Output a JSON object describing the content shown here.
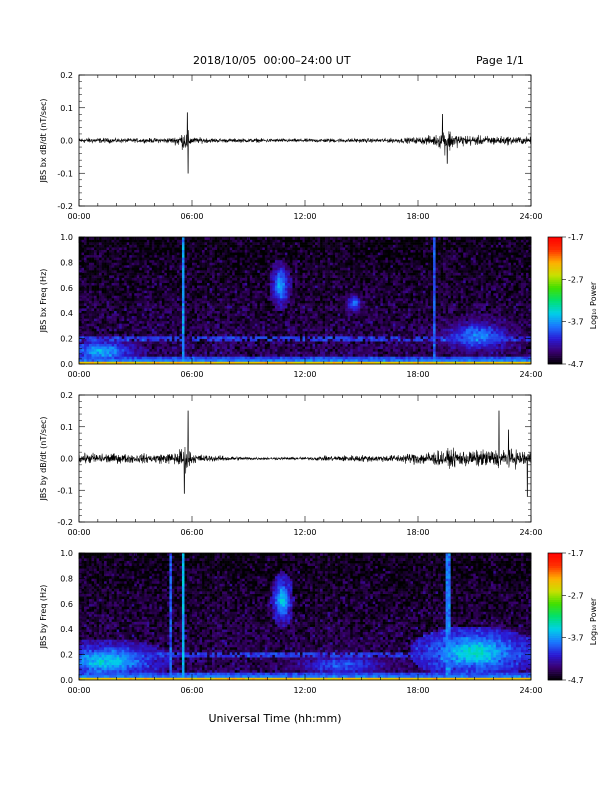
{
  "header": {
    "title": "2018/10/05  00:00–24:00 UT",
    "page": "Page 1/1"
  },
  "xaxis": {
    "label": "Universal Time (hh:mm)",
    "ticks": [
      "00:00",
      "06:00",
      "12:00",
      "18:00",
      "24:00"
    ],
    "range_hours": [
      0,
      24
    ]
  },
  "colorbar": {
    "label": "Log₁₀ Power",
    "ticks": [
      "-1.7",
      "-2.7",
      "-3.7",
      "-4.7"
    ],
    "range": [
      -4.7,
      -1.7
    ],
    "colors": [
      "#000000",
      "#3a0070",
      "#2a1ad6",
      "#1a78ff",
      "#00d0e8",
      "#00e070",
      "#40e000",
      "#c8e000",
      "#ffb000",
      "#ff3000",
      "#ff0000"
    ]
  },
  "chart_data": [
    {
      "type": "line",
      "panel": "bx-timeseries",
      "ylabel": "JBS bx dB/dt (nT/sec)",
      "ylim": [
        -0.2,
        0.2
      ],
      "yticks": [
        "0.2",
        "0.1",
        "0.0",
        "-0.1",
        "-0.2"
      ],
      "x_hours": [
        0,
        1,
        2,
        3,
        4,
        5,
        5.75,
        6,
        7,
        8,
        9,
        10,
        11,
        12,
        13,
        14,
        15,
        16,
        17,
        18,
        19,
        19.5,
        20,
        21,
        22,
        23,
        24
      ],
      "y_amplitude": [
        0.018,
        0.016,
        0.014,
        0.013,
        0.014,
        0.018,
        0.07,
        0.02,
        0.014,
        0.012,
        0.012,
        0.012,
        0.011,
        0.011,
        0.012,
        0.013,
        0.012,
        0.013,
        0.015,
        0.02,
        0.035,
        0.085,
        0.04,
        0.03,
        0.028,
        0.025,
        0.022
      ],
      "spikes": [
        {
          "x": 5.75,
          "y": 0.085
        },
        {
          "x": 5.8,
          "y": -0.1
        },
        {
          "x": 19.3,
          "y": 0.08
        },
        {
          "x": 19.55,
          "y": -0.07
        }
      ]
    },
    {
      "type": "heatmap",
      "panel": "bx-spectrogram",
      "ylabel": "JBS bx Freq (Hz)",
      "ylim": [
        0,
        1.0
      ],
      "yticks": [
        "1.0",
        "0.8",
        "0.6",
        "0.4",
        "0.2",
        "0.0"
      ],
      "crange": [
        -4.7,
        -1.7
      ],
      "features": [
        {
          "kind": "blob",
          "x": 10.7,
          "y": 0.62,
          "sx": 0.35,
          "sy": 0.12,
          "v": -3.6
        },
        {
          "kind": "blob",
          "x": 14.6,
          "y": 0.48,
          "sx": 0.45,
          "sy": 0.07,
          "v": -3.9
        },
        {
          "kind": "blob",
          "x": 21.2,
          "y": 0.22,
          "sx": 1.6,
          "sy": 0.1,
          "v": -3.75
        },
        {
          "kind": "blob",
          "x": 1.2,
          "y": 0.1,
          "sx": 1.4,
          "sy": 0.07,
          "v": -3.6
        },
        {
          "kind": "band",
          "y": 0.2,
          "v": -4.0
        },
        {
          "kind": "stripe",
          "x": 5.5,
          "v": -3.7
        },
        {
          "kind": "stripe",
          "x": 18.9,
          "v": -3.9
        }
      ]
    },
    {
      "type": "line",
      "panel": "by-timeseries",
      "ylabel": "JBS by dB/dt (nT/sec)",
      "ylim": [
        -0.2,
        0.2
      ],
      "yticks": [
        "0.2",
        "0.1",
        "0.0",
        "-0.1",
        "-0.2"
      ],
      "x_hours": [
        0,
        1,
        2,
        3,
        4,
        5,
        5.75,
        6,
        7,
        8,
        9,
        10,
        11,
        12,
        13,
        14,
        15,
        16,
        17,
        18,
        19,
        20,
        21,
        22,
        23,
        24
      ],
      "y_amplitude": [
        0.03,
        0.035,
        0.03,
        0.028,
        0.03,
        0.035,
        0.09,
        0.03,
        0.02,
        0.015,
        0.01,
        0.008,
        0.008,
        0.009,
        0.015,
        0.02,
        0.022,
        0.02,
        0.025,
        0.04,
        0.05,
        0.055,
        0.05,
        0.06,
        0.055,
        0.05
      ],
      "spikes": [
        {
          "x": 5.8,
          "y": 0.15
        },
        {
          "x": 5.6,
          "y": -0.11
        },
        {
          "x": 22.3,
          "y": 0.15
        },
        {
          "x": 23.8,
          "y": -0.12
        },
        {
          "x": 22.8,
          "y": 0.09
        }
      ]
    },
    {
      "type": "heatmap",
      "panel": "by-spectrogram",
      "ylabel": "JBS by Freq (Hz)",
      "ylim": [
        0,
        1.0
      ],
      "yticks": [
        "1.0",
        "0.8",
        "0.6",
        "0.4",
        "0.2",
        "0.0"
      ],
      "crange": [
        -4.7,
        -1.7
      ],
      "features": [
        {
          "kind": "blob",
          "x": 10.8,
          "y": 0.63,
          "sx": 0.35,
          "sy": 0.13,
          "v": -3.5
        },
        {
          "kind": "blob",
          "x": 21.0,
          "y": 0.22,
          "sx": 2.0,
          "sy": 0.12,
          "v": -3.4
        },
        {
          "kind": "blob",
          "x": 1.5,
          "y": 0.15,
          "sx": 2.0,
          "sy": 0.1,
          "v": -3.5
        },
        {
          "kind": "blob",
          "x": 14.0,
          "y": 0.12,
          "sx": 2.5,
          "sy": 0.08,
          "v": -3.9
        },
        {
          "kind": "band",
          "y": 0.2,
          "v": -4.0
        },
        {
          "kind": "stripe",
          "x": 5.5,
          "v": -3.6
        },
        {
          "kind": "stripe",
          "x": 4.9,
          "v": -3.9
        },
        {
          "kind": "stripe",
          "x": 19.6,
          "v": -3.8
        }
      ]
    }
  ]
}
